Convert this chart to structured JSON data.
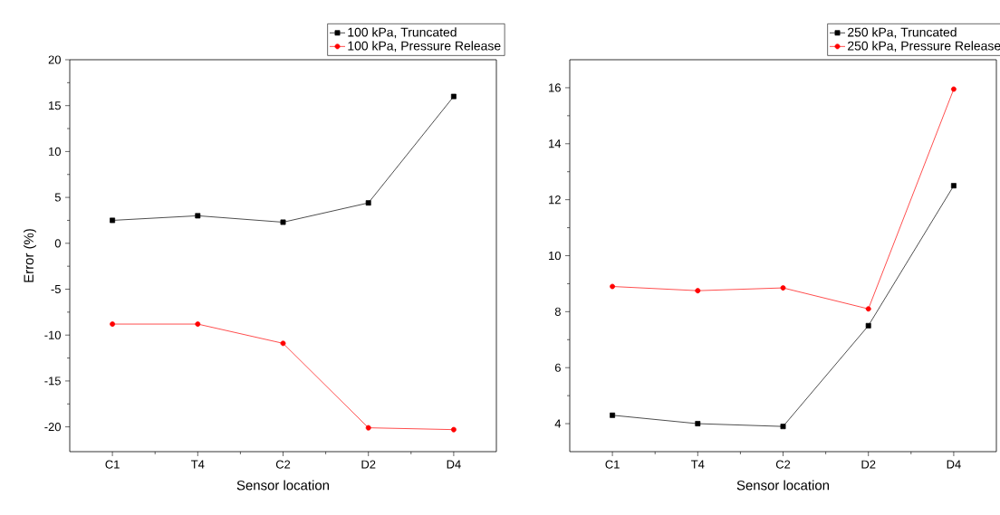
{
  "chart_data": [
    {
      "type": "line",
      "categories": [
        "C1",
        "T4",
        "C2",
        "D2",
        "D4"
      ],
      "xlabel": "Sensor location",
      "ylabel": "Error (%)",
      "ylim": [
        -22.7,
        20
      ],
      "yticks": [
        -20,
        -15,
        -10,
        -5,
        0,
        5,
        10,
        15,
        20
      ],
      "legend": "top right",
      "series": [
        {
          "name": "100 kPa, Truncated",
          "color": "#000000",
          "marker": "square",
          "values": [
            2.5,
            3.0,
            2.3,
            4.4,
            16.0
          ]
        },
        {
          "name": "100 kPa, Pressure Release",
          "color": "#ff0000",
          "marker": "circle",
          "values": [
            -8.8,
            -8.8,
            -10.9,
            -20.1,
            -20.3
          ]
        }
      ]
    },
    {
      "type": "line",
      "categories": [
        "C1",
        "T4",
        "C2",
        "D2",
        "D4"
      ],
      "xlabel": "Sensor location",
      "ylim": [
        3,
        17
      ],
      "yticks": [
        4,
        6,
        8,
        10,
        12,
        14,
        16
      ],
      "legend": "top right",
      "series": [
        {
          "name": "250 kPa, Truncated",
          "color": "#000000",
          "marker": "square",
          "values": [
            4.3,
            4.0,
            3.9,
            7.5,
            12.5
          ]
        },
        {
          "name": "250 kPa, Pressure Release",
          "color": "#ff0000",
          "marker": "circle",
          "values": [
            8.9,
            8.75,
            8.85,
            8.1,
            15.95
          ]
        }
      ]
    }
  ]
}
